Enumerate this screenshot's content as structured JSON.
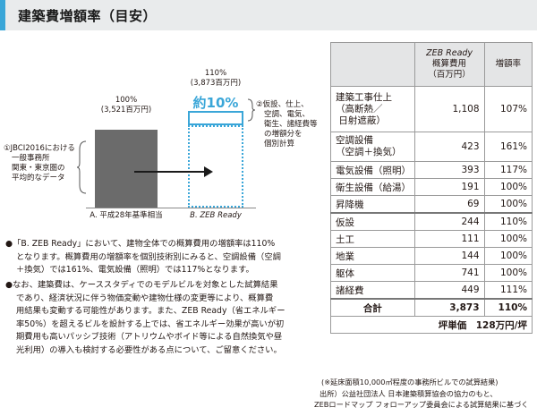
{
  "title": "建築費増額率（目安）",
  "chart_data": {
    "type": "bar",
    "categories": [
      "A. 平成28年基準相当",
      "B. ZEB Ready"
    ],
    "values": [
      3521,
      3873
    ],
    "percent_labels": [
      "100%",
      "110%"
    ],
    "value_labels": [
      "(3,521百万円)",
      "(3,873百万円)"
    ],
    "highlight_label": "約10%",
    "note_left": [
      "①JBCI2016における",
      "一般事務所",
      "関東・東京圏の",
      "平均的なデータ"
    ],
    "note_right": [
      "②仮設、仕上、",
      "空調、電気、",
      "衛生、諸経費等",
      "の増額分を",
      "個別計算"
    ]
  },
  "paragraph1": [
    "●「B. ZEB Ready」において、建物全体での概算費用の増額率は110%",
    "となります。概算費用の増額率を個別技術別にみると、空調設備（空調",
    "＋換気）では161%、電気設備（照明）では117%となります。"
  ],
  "paragraph2": [
    "●なお、建築費は、ケーススタディでのモデルビルを対象とした試算結果",
    "であり、経済状況に伴う物価変動や建物仕様の変更等により、概算費",
    "用結果も変動する可能性があります。また、ZEB Ready（省エネルギー",
    "率50%）を超えるビルを設計する上では、省エネルギー効果が高いが初",
    "期費用も高いパッシブ技術（アトリウムやボイド等による自然換気や昼",
    "光利用）の導入も検討する必要性がある点について、ご留意ください。"
  ],
  "table": {
    "header": [
      "",
      "ZEB Ready\n概算費用\n（百万円）",
      "増額率"
    ],
    "rows": [
      {
        "item": "建築工事仕上\n（高断熱／\n日射遮蔽）",
        "cost": "1,108",
        "rate": "107%"
      },
      {
        "item": "空調設備\n（空調＋換気）",
        "cost": "423",
        "rate": "161%"
      },
      {
        "item": "電気設備（照明）",
        "cost": "393",
        "rate": "117%"
      },
      {
        "item": "衛生設備（給湯）",
        "cost": "191",
        "rate": "100%"
      },
      {
        "item": "昇降機",
        "cost": "69",
        "rate": "100%"
      },
      {
        "item": "仮設",
        "cost": "244",
        "rate": "110%"
      },
      {
        "item": "土工",
        "cost": "111",
        "rate": "100%"
      },
      {
        "item": "地業",
        "cost": "144",
        "rate": "100%"
      },
      {
        "item": "躯体",
        "cost": "741",
        "rate": "100%"
      },
      {
        "item": "諸経費",
        "cost": "449",
        "rate": "111%"
      }
    ],
    "total": {
      "label": "合計",
      "cost": "3,873",
      "rate": "110%"
    },
    "unit_price": "坪単価　128万円/坪"
  },
  "footnotes": [
    "(※延床面積10,000㎡程度の事務所ビルでの試算結果)",
    "出所）公益社団法人 日本建築積算協会の協力のもと、",
    "ZEBロードマップ フォローアップ委員会による試算結果に基づく"
  ]
}
